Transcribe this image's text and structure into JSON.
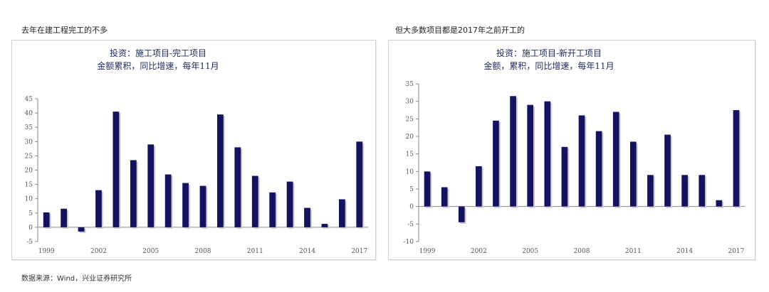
{
  "captions": {
    "left": "去年在建工程完工的不多",
    "right": "但大多数项目都是2017年之前开工的"
  },
  "source": "数据来源：Wind，兴业证券研究所",
  "colors": {
    "bar": "#14145e",
    "axis": "#888888",
    "title": "#1e2a5a"
  },
  "chart_data": [
    {
      "type": "bar",
      "title": "投资：施工项目-完工项目",
      "subtitle": "金额累积，同比增速，每年11月",
      "categories": [
        "1999",
        "2000",
        "2001",
        "2002",
        "2003",
        "2004",
        "2005",
        "2006",
        "2007",
        "2008",
        "2009",
        "2010",
        "2011",
        "2012",
        "2013",
        "2014",
        "2015",
        "2016",
        "2017"
      ],
      "values": [
        5.2,
        6.5,
        -1.5,
        13,
        40.5,
        23.5,
        29,
        18.5,
        15.5,
        14.5,
        39.5,
        28,
        18,
        12.2,
        16,
        6.8,
        1.2,
        9.8,
        30
      ],
      "ylim": [
        -5,
        45
      ],
      "yticks": [
        -5,
        0,
        5,
        10,
        15,
        20,
        25,
        30,
        35,
        40,
        45
      ],
      "xtick_labels": [
        "1999",
        "2002",
        "2005",
        "2008",
        "2011",
        "2014",
        "2017"
      ],
      "xlabel": "",
      "ylabel": "",
      "grid": false,
      "legend": "none"
    },
    {
      "type": "bar",
      "title": "投资：施工项目-新开工项目",
      "subtitle": "金额，累积，同比增速，每年11月",
      "categories": [
        "1999",
        "2000",
        "2001",
        "2002",
        "2003",
        "2004",
        "2005",
        "2006",
        "2007",
        "2008",
        "2009",
        "2010",
        "2011",
        "2012",
        "2013",
        "2014",
        "2015",
        "2016",
        "2017"
      ],
      "values": [
        10,
        5.5,
        -4.5,
        11.5,
        24.5,
        31.5,
        29,
        30,
        17,
        26,
        21.5,
        27,
        18.5,
        9,
        20.5,
        9,
        9,
        1.8,
        27.5
      ],
      "ylim": [
        -10,
        35
      ],
      "yticks": [
        -10,
        -5,
        0,
        5,
        10,
        15,
        20,
        25,
        30,
        35
      ],
      "xtick_labels": [
        "1999",
        "2002",
        "2005",
        "2008",
        "2011",
        "2014",
        "2017"
      ],
      "xlabel": "",
      "ylabel": "",
      "grid": false,
      "legend": "none"
    }
  ]
}
